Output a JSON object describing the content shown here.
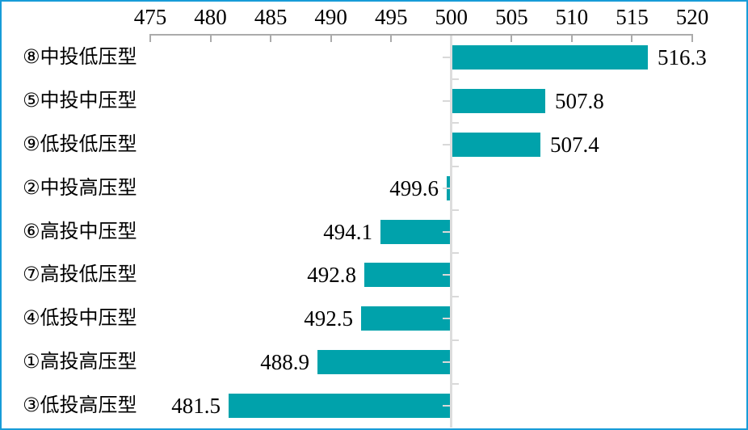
{
  "chart_data": {
    "type": "bar",
    "orientation": "horizontal",
    "title": "",
    "xlabel": "",
    "ylabel": "",
    "baseline": 500,
    "xlim": [
      475,
      520
    ],
    "x_ticks": [
      475,
      480,
      485,
      490,
      495,
      500,
      505,
      510,
      515,
      520
    ],
    "x_tick_labels": [
      "475",
      "480",
      "485",
      "490",
      "495",
      "500",
      "505",
      "510",
      "515",
      "520"
    ],
    "axis_position": "top",
    "grid": false,
    "legend": false,
    "categories": [
      "⑧中投低压型",
      "⑤中投中压型",
      "⑨低投低压型",
      "②中投高压型",
      "⑥高投中压型",
      "⑦高投低压型",
      "④低投中压型",
      "①高投高压型",
      "③低投高压型"
    ],
    "values": [
      516.3,
      507.8,
      507.4,
      499.6,
      494.1,
      492.8,
      492.5,
      488.9,
      481.5
    ],
    "value_labels": [
      "516.3",
      "507.8",
      "507.4",
      "499.6",
      "494.1",
      "492.8",
      "492.5",
      "488.9",
      "481.5"
    ],
    "colors": {
      "bar": "#00A2AB",
      "axis_line": "#ABABAB",
      "baseline_line": "#DDDDDD",
      "category_tick": "#D9D9D9",
      "frame_border": "#189CD8",
      "text": "#000000",
      "background": "#FFFFFF"
    }
  }
}
